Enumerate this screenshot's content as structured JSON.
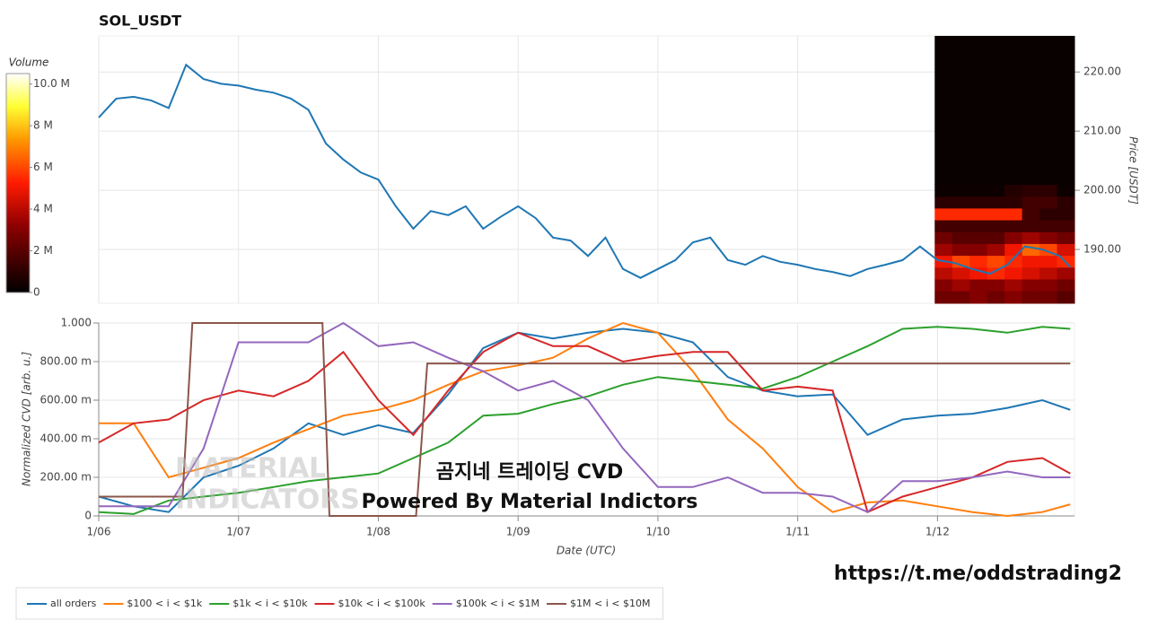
{
  "chart_data": [
    {
      "type": "line",
      "title": "SOL_USDT",
      "y_label": "Price [USDT]",
      "y_axis_side": "right",
      "x": [
        0,
        0.125,
        0.25,
        0.375,
        0.5,
        0.625,
        0.75,
        0.875,
        1,
        1.125,
        1.25,
        1.375,
        1.5,
        1.625,
        1.75,
        1.875,
        2,
        2.125,
        2.25,
        2.375,
        2.5,
        2.625,
        2.75,
        2.875,
        3,
        3.125,
        3.25,
        3.375,
        3.5,
        3.625,
        3.75,
        3.875,
        4,
        4.125,
        4.25,
        4.375,
        4.5,
        4.625,
        4.75,
        4.875,
        5,
        5.125,
        5.25,
        5.375,
        5.5,
        5.625,
        5.75,
        5.875,
        6,
        6.125,
        6.25,
        6.375,
        6.5,
        6.625,
        6.75,
        6.875,
        6.95
      ],
      "values": [
        212.3,
        215.5,
        215.8,
        215.2,
        213.9,
        221.2,
        218.8,
        218.0,
        217.7,
        217.0,
        216.5,
        215.5,
        213.6,
        207.9,
        205.2,
        203.0,
        201.8,
        197.3,
        193.5,
        196.5,
        195.8,
        197.3,
        193.5,
        195.5,
        197.3,
        195.3,
        192.0,
        191.5,
        188.9,
        192.0,
        186.7,
        185.2,
        186.7,
        188.2,
        191.2,
        192.0,
        188.2,
        187.4,
        188.9,
        187.9,
        187.4,
        186.7,
        186.2,
        185.5,
        186.7,
        187.4,
        188.2,
        190.5,
        188.2,
        187.7,
        186.7,
        185.9,
        187.4,
        190.5,
        190.0,
        188.9,
        187.0
      ],
      "color": "#1f77b4",
      "xlim": [
        0,
        6.98
      ],
      "xticks": [
        0,
        1,
        2,
        3,
        4,
        5,
        6
      ],
      "ylim": [
        180.9,
        226.1
      ],
      "yticks": [
        {
          "value": 190,
          "label": "190.00"
        },
        {
          "value": 200,
          "label": "200.00"
        },
        {
          "value": 210,
          "label": "210.00"
        },
        {
          "value": 220,
          "label": "220.00"
        }
      ],
      "grid": true,
      "heatmap": {
        "title": "Volume",
        "x_edges": [
          5.98,
          6.105,
          6.23,
          6.355,
          6.48,
          6.605,
          6.73,
          6.855,
          6.98
        ],
        "y_edges": [
          180.9,
          183,
          185,
          187,
          189,
          191,
          193,
          195,
          197,
          199,
          201,
          226.1
        ],
        "values": [
          [
            2.5,
            2.5,
            3,
            2.5,
            3,
            2.5,
            2.5,
            2
          ],
          [
            3,
            3.5,
            3,
            3,
            3.5,
            3,
            3,
            2.5
          ],
          [
            4,
            4.5,
            5,
            5.5,
            5,
            4.5,
            4,
            3.5
          ],
          [
            5,
            6,
            5.5,
            6,
            5.5,
            5,
            5,
            5.5
          ],
          [
            3.5,
            3,
            3,
            3.5,
            5,
            6.5,
            6,
            4.5
          ],
          [
            2.5,
            2,
            2,
            2,
            3,
            3.5,
            3,
            2.5
          ],
          [
            1.5,
            1.5,
            1.5,
            1.5,
            1.5,
            1.5,
            1.5,
            1.5
          ],
          [
            5.5,
            5.5,
            5.5,
            5.5,
            5.5,
            1.5,
            1,
            1
          ],
          [
            1,
            1,
            1,
            1,
            1,
            1.5,
            1.5,
            1
          ],
          [
            0.3,
            0.3,
            0.3,
            0.3,
            0.8,
            1,
            1,
            0.3
          ],
          [
            0.2,
            0.2,
            0.2,
            0.2,
            0.2,
            0.2,
            0.2,
            0.2
          ]
        ],
        "clim": [
          0,
          10.5
        ],
        "cticks": [
          0,
          {
            "value": 2,
            "label": "2 M"
          },
          {
            "value": 4,
            "label": "4 M"
          },
          {
            "value": 6,
            "label": "6 M"
          },
          {
            "value": 8,
            "label": "8 M"
          },
          {
            "value": 10,
            "label": "10.0 M"
          }
        ]
      }
    },
    {
      "type": "line",
      "x_label": "Date (UTC)",
      "y_label": "Normalized CVD [arb. u.]",
      "x": [
        0,
        0.25,
        0.5,
        0.75,
        1,
        1.25,
        1.5,
        1.75,
        2,
        2.25,
        2.5,
        2.75,
        3,
        3.25,
        3.5,
        3.75,
        4,
        4.25,
        4.5,
        4.75,
        5,
        5.25,
        5.5,
        5.75,
        6,
        6.25,
        6.5,
        6.75,
        6.95
      ],
      "series": [
        {
          "name": "all orders",
          "color": "#1f77b4",
          "values": [
            0.1,
            0.05,
            0.02,
            0.2,
            0.26,
            0.35,
            0.48,
            0.42,
            0.47,
            0.43,
            0.63,
            0.87,
            0.95,
            0.92,
            0.95,
            0.97,
            0.95,
            0.9,
            0.72,
            0.65,
            0.62,
            0.63,
            0.42,
            0.5,
            0.52,
            0.53,
            0.56,
            0.6,
            0.55
          ]
        },
        {
          "name": "$100 < i < $1k",
          "color": "#ff7f0e",
          "values": [
            0.48,
            0.48,
            0.2,
            0.25,
            0.3,
            0.38,
            0.45,
            0.52,
            0.55,
            0.6,
            0.68,
            0.75,
            0.78,
            0.82,
            0.92,
            1.0,
            0.95,
            0.75,
            0.5,
            0.35,
            0.15,
            0.02,
            0.07,
            0.08,
            0.05,
            0.02,
            0,
            0.02,
            0.06
          ]
        },
        {
          "name": "$1k < i < $10k",
          "color": "#2ca02c",
          "values": [
            0.02,
            0.01,
            0.08,
            0.1,
            0.12,
            0.15,
            0.18,
            0.2,
            0.22,
            0.3,
            0.38,
            0.52,
            0.53,
            0.58,
            0.62,
            0.68,
            0.72,
            0.7,
            0.68,
            0.66,
            0.72,
            0.8,
            0.88,
            0.97,
            0.98,
            0.97,
            0.95,
            0.98,
            0.97
          ]
        },
        {
          "name": "$10k < i < $100k",
          "color": "#d62728",
          "values": [
            0.38,
            0.48,
            0.5,
            0.6,
            0.65,
            0.62,
            0.7,
            0.85,
            0.6,
            0.42,
            0.65,
            0.85,
            0.95,
            0.88,
            0.88,
            0.8,
            0.83,
            0.85,
            0.85,
            0.65,
            0.67,
            0.65,
            0.02,
            0.1,
            0.15,
            0.2,
            0.28,
            0.3,
            0.22
          ]
        },
        {
          "name": "$100k < i < $1M",
          "color": "#9467bd",
          "values": [
            0.05,
            0.05,
            0.05,
            0.35,
            0.9,
            0.9,
            0.9,
            1.0,
            0.88,
            0.9,
            0.82,
            0.75,
            0.65,
            0.7,
            0.6,
            0.35,
            0.15,
            0.15,
            0.2,
            0.12,
            0.12,
            0.1,
            0.02,
            0.18,
            0.18,
            0.2,
            0.23,
            0.2,
            0.2
          ]
        },
        {
          "name": "$1M < i < $10M",
          "color": "#8c564b",
          "x": [
            0,
            0.6,
            0.67,
            1.6,
            1.65,
            2.27,
            2.35,
            6.95
          ],
          "values": [
            0.1,
            0.1,
            1,
            1,
            0,
            0,
            0.79,
            0.79
          ]
        }
      ],
      "xlim": [
        0,
        6.98
      ],
      "xticks": [
        {
          "value": 0,
          "label": "1/06"
        },
        {
          "value": 1,
          "label": "1/07"
        },
        {
          "value": 2,
          "label": "1/08"
        },
        {
          "value": 3,
          "label": "1/09"
        },
        {
          "value": 4,
          "label": "1/10"
        },
        {
          "value": 5,
          "label": "1/11"
        },
        {
          "value": 6,
          "label": "1/12"
        }
      ],
      "ylim": [
        0,
        1
      ],
      "yticks": [
        0,
        {
          "value": 0.2,
          "label": "200.00 m"
        },
        {
          "value": 0.4,
          "label": "400.00 m"
        },
        {
          "value": 0.6,
          "label": "600.00 m"
        },
        {
          "value": 0.8,
          "label": "800.00 m"
        },
        {
          "value": 1,
          "label": "1.000"
        }
      ],
      "grid": true,
      "legend": "bottom"
    }
  ],
  "watermark": [
    "MATERIAL",
    "INDICATORS"
  ],
  "overlay_texts": [
    "곰지네 트레이딩 CVD",
    "Powered By Material Indictors"
  ],
  "link": "https://t.me/oddstrading2"
}
